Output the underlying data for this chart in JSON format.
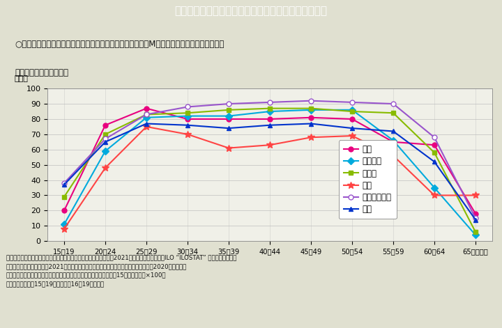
{
  "title": "２－５図　主要国における女性の年齢階級別労働力率",
  "subtitle_line1": "○我が国の女性の年齢階級別労働力率のグラフ全体の形は、M字型から先進諸国で見られる台",
  "subtitle_line2": "　形に近づきつつある。",
  "ylabel": "（％）",
  "age_labels": [
    "15～19",
    "20～24",
    "25～29",
    "30～34",
    "35～39",
    "40～44",
    "45～49",
    "50～54",
    "55～59",
    "60～64",
    "65～（歳）"
  ],
  "ylim": [
    0,
    100
  ],
  "yticks": [
    0,
    10,
    20,
    30,
    40,
    50,
    60,
    70,
    80,
    90,
    100
  ],
  "series": [
    {
      "name": "日本",
      "color": "#e8007f",
      "marker": "o",
      "markersize": 5,
      "markerfacecolor": "#e8007f",
      "data": [
        20,
        76,
        87,
        80,
        80,
        80,
        81,
        80,
        65,
        63,
        18
      ]
    },
    {
      "name": "フランス",
      "color": "#00aadd",
      "marker": "D",
      "markersize": 5,
      "markerfacecolor": "#00aadd",
      "data": [
        11,
        59,
        81,
        82,
        82,
        85,
        86,
        86,
        66,
        35,
        4
      ]
    },
    {
      "name": "ドイツ",
      "color": "#88bb00",
      "marker": "s",
      "markersize": 5,
      "markerfacecolor": "#88bb00",
      "data": [
        29,
        70,
        83,
        84,
        86,
        87,
        87,
        85,
        84,
        58,
        6
      ]
    },
    {
      "name": "韓国",
      "color": "#ff4444",
      "marker": "*",
      "markersize": 7,
      "markerfacecolor": "#ff4444",
      "data": [
        8,
        48,
        75,
        70,
        61,
        63,
        68,
        69,
        56,
        30,
        30
      ]
    },
    {
      "name": "スウェーデン",
      "color": "#9955cc",
      "marker": "o",
      "markersize": 5,
      "markerfacecolor": "white",
      "data": [
        38,
        67,
        83,
        88,
        90,
        91,
        92,
        91,
        90,
        68,
        15
      ]
    },
    {
      "name": "米国",
      "color": "#0033cc",
      "marker": "^",
      "markersize": 5,
      "markerfacecolor": "#0033cc",
      "data": [
        37,
        65,
        77,
        76,
        74,
        76,
        77,
        74,
        72,
        52,
        14
      ]
    }
  ],
  "note1": "（備考）１．日本は総務省『労働力調査（基本集計）』（令和３（2021）年）、その他の国はILO “ILOSTAT” より作成。韓国、",
  "note2": "　　　　　米国は令和３（2021）年の値。フランス、ドイツ、スウェーデンは令和２（2020）年の値。",
  "note3": "　　　２．労働力率は、『労働力人口（就業者＋完全失業者）』／『15歳以上人口』×100。",
  "note4": "　　　３．米国の15～19歳の値は、16～19歳の値。",
  "bg_color": "#e0e0d0",
  "plot_bg_color": "#f0f0e8",
  "header_bg_color": "#29b6d2",
  "header_text_color": "#ffffff",
  "box_bg_color": "#ffffff"
}
